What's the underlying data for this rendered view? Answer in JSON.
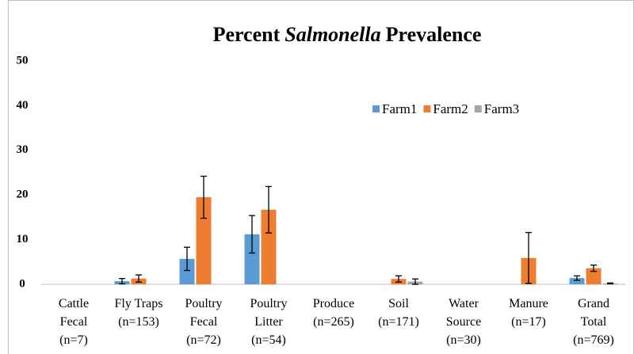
{
  "chart_data": {
    "type": "bar",
    "title_parts": [
      "Percent",
      "Salmonella",
      "Prevalence"
    ],
    "categories": [
      [
        "Cattle",
        "Fecal",
        "(n=7)"
      ],
      [
        "Fly Traps",
        "(n=153)"
      ],
      [
        "Poultry",
        "Fecal",
        "(n=72)"
      ],
      [
        "Poultry",
        "Litter",
        "(n=54)"
      ],
      [
        "Produce",
        "(n=265)"
      ],
      [
        "Soil",
        "(n=171)"
      ],
      [
        "Water",
        "Source",
        "(n=30)"
      ],
      [
        "Manure",
        "(n=17)"
      ],
      [
        "Grand",
        "Total",
        "(n=769)"
      ]
    ],
    "series": [
      {
        "name": "Farm1",
        "color": "#5b9bd5",
        "values": [
          0,
          0.7,
          5.7,
          11.2,
          0,
          0,
          0,
          0,
          1.4
        ],
        "errors": [
          null,
          0.6,
          2.6,
          4.2,
          null,
          null,
          null,
          null,
          0.5
        ]
      },
      {
        "name": "Farm2",
        "color": "#ed7d31",
        "values": [
          0,
          1.3,
          19.5,
          16.7,
          0,
          1.2,
          0,
          5.9,
          3.6
        ],
        "errors": [
          null,
          0.8,
          4.7,
          5.2,
          null,
          0.7,
          null,
          5.7,
          0.7
        ]
      },
      {
        "name": "Farm3",
        "color": "#a5a5a5",
        "values": [
          0,
          0,
          0,
          0,
          0,
          0.6,
          0,
          0,
          0.2
        ],
        "errors": [
          null,
          null,
          null,
          null,
          null,
          0.6,
          null,
          null,
          0.1
        ]
      }
    ],
    "ylim": [
      0,
      50
    ],
    "yticks": [
      0,
      10,
      20,
      30,
      40,
      50
    ],
    "grid": false
  }
}
